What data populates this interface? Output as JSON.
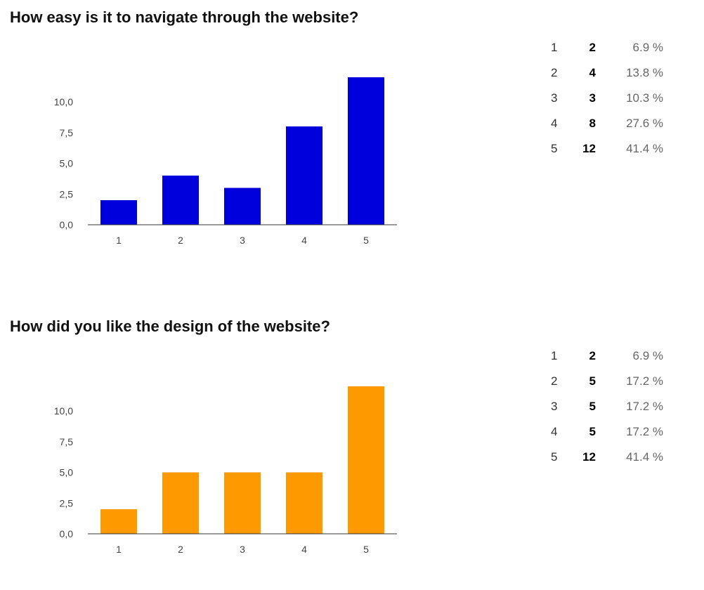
{
  "chart_data": [
    {
      "type": "bar",
      "title": "How easy is it to navigate through the website?",
      "categories": [
        "1",
        "2",
        "3",
        "4",
        "5"
      ],
      "values": [
        2,
        4,
        3,
        8,
        12
      ],
      "ylim": [
        0,
        12
      ],
      "yticks": [
        0,
        2.5,
        5,
        7.5,
        10
      ],
      "ytick_labels": [
        "0,0",
        "2,5",
        "5,0",
        "7,5",
        "10,0"
      ],
      "color": "#0000dd",
      "grid": false,
      "legend": "none",
      "summary": [
        {
          "option": "1",
          "count": "2",
          "percent": "6.9 %"
        },
        {
          "option": "2",
          "count": "4",
          "percent": "13.8 %"
        },
        {
          "option": "3",
          "count": "3",
          "percent": "10.3 %"
        },
        {
          "option": "4",
          "count": "8",
          "percent": "27.6 %"
        },
        {
          "option": "5",
          "count": "12",
          "percent": "41.4 %"
        }
      ]
    },
    {
      "type": "bar",
      "title": "How did you like the design of the website?",
      "categories": [
        "1",
        "2",
        "3",
        "4",
        "5"
      ],
      "values": [
        2,
        5,
        5,
        5,
        12
      ],
      "ylim": [
        0,
        12
      ],
      "yticks": [
        0,
        2.5,
        5,
        7.5,
        10
      ],
      "ytick_labels": [
        "0,0",
        "2,5",
        "5,0",
        "7,5",
        "10,0"
      ],
      "color": "#ff9900",
      "grid": false,
      "legend": "none",
      "summary": [
        {
          "option": "1",
          "count": "2",
          "percent": "6.9 %"
        },
        {
          "option": "2",
          "count": "5",
          "percent": "17.2 %"
        },
        {
          "option": "3",
          "count": "5",
          "percent": "17.2 %"
        },
        {
          "option": "4",
          "count": "5",
          "percent": "17.2 %"
        },
        {
          "option": "5",
          "count": "12",
          "percent": "41.4 %"
        }
      ]
    }
  ]
}
